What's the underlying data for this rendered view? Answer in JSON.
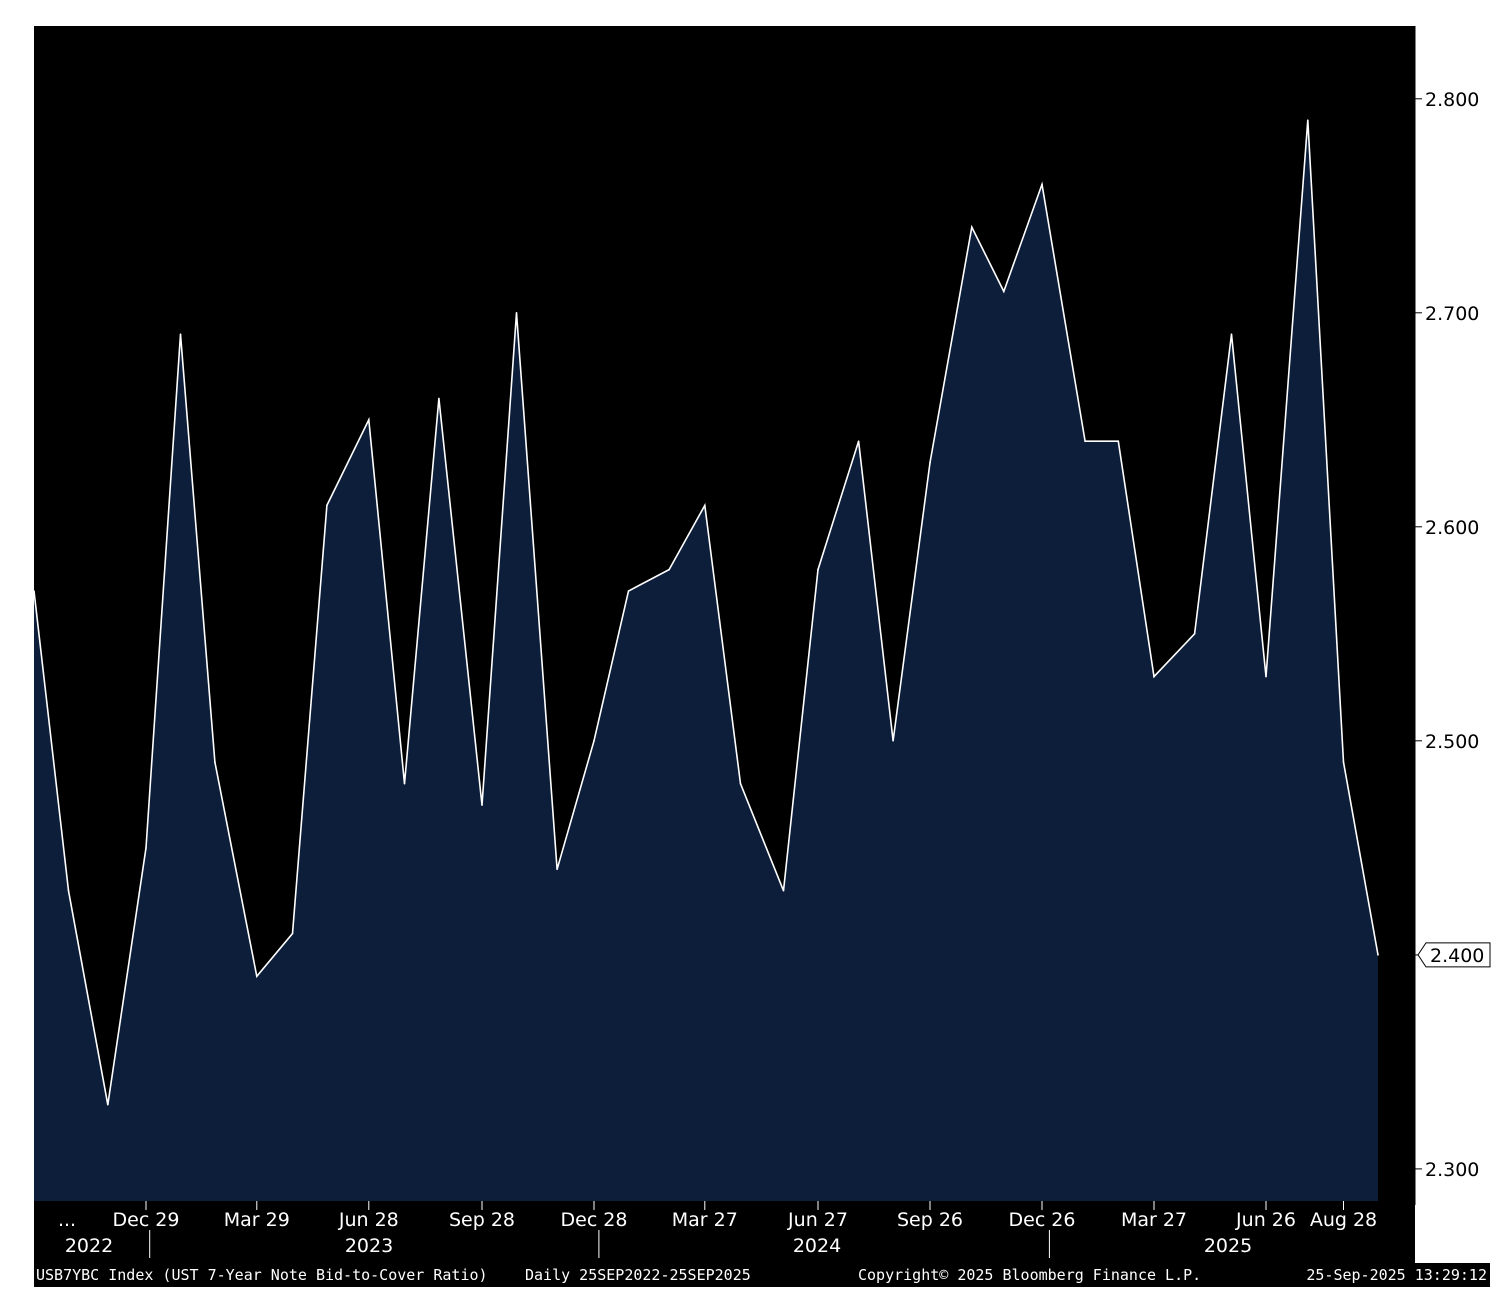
{
  "chart_data": {
    "type": "area",
    "x": [
      "2022-09-29",
      "2022-10-27",
      "2022-11-28",
      "2022-12-29",
      "2023-01-26",
      "2023-02-23",
      "2023-03-29",
      "2023-04-27",
      "2023-05-25",
      "2023-06-28",
      "2023-07-27",
      "2023-08-24",
      "2023-09-28",
      "2023-10-26",
      "2023-11-28",
      "2023-12-28",
      "2024-01-25",
      "2024-02-27",
      "2024-03-27",
      "2024-04-25",
      "2024-05-30",
      "2024-06-27",
      "2024-07-30",
      "2024-08-27",
      "2024-09-26",
      "2024-10-30",
      "2024-11-25",
      "2024-12-26",
      "2025-01-30",
      "2025-02-26",
      "2025-03-27",
      "2025-04-29",
      "2025-05-29",
      "2025-06-26",
      "2025-07-30",
      "2025-08-28",
      "2025-09-25"
    ],
    "values": [
      2.57,
      2.43,
      2.33,
      2.45,
      2.69,
      2.49,
      2.39,
      2.41,
      2.61,
      2.65,
      2.48,
      2.66,
      2.47,
      2.7,
      2.44,
      2.5,
      2.57,
      2.58,
      2.61,
      2.48,
      2.43,
      2.58,
      2.64,
      2.5,
      2.63,
      2.74,
      2.71,
      2.76,
      2.64,
      2.64,
      2.53,
      2.55,
      2.69,
      2.53,
      2.79,
      2.49,
      2.4
    ],
    "ylim": [
      2.285,
      2.834
    ],
    "yticks": [
      "2.300",
      "2.400",
      "2.500",
      "2.600",
      "2.700",
      "2.800"
    ],
    "last_value_label": "2.400",
    "xtick_labels": [
      "...",
      "Dec 29",
      "Mar 29",
      "Jun 28",
      "Sep 28",
      "Dec 28",
      "Mar 27",
      "Jun 27",
      "Sep 26",
      "Dec 26",
      "Mar 27",
      "Jun 26",
      "Aug 28"
    ],
    "year_labels": [
      "2022",
      "2023",
      "2024",
      "2025"
    ],
    "grid": false,
    "colors": {
      "background": "#000000",
      "fill": "#0c1e3a",
      "line": "#ffffff"
    }
  },
  "footer": {
    "series": "USB7YBC Index (UST 7-Year Note Bid-to-Cover Ratio)",
    "range": "Daily 25SEP2022-25SEP2025",
    "copyright": "Copyright© 2025 Bloomberg Finance L.P.",
    "timestamp": "25-Sep-2025 13:29:12"
  }
}
